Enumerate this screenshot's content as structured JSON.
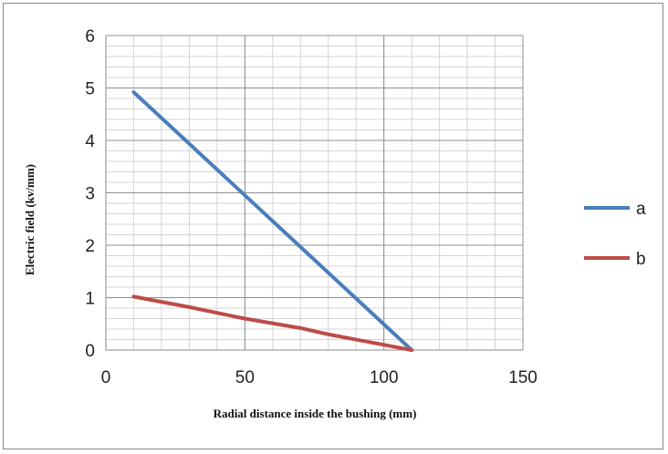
{
  "chart_data": {
    "type": "line",
    "title": "",
    "xlabel": "Radial distance inside the bushing (mm)",
    "ylabel": "Electric field (kv/mm)",
    "xlim": [
      0,
      150
    ],
    "ylim": [
      0,
      6
    ],
    "x_ticks": [
      "0",
      "50",
      "100",
      "150"
    ],
    "y_ticks": [
      "0",
      "1",
      "2",
      "3",
      "4",
      "5",
      "6"
    ],
    "grid": true,
    "legend_position": "right",
    "series": [
      {
        "name": "a",
        "color": "#4a7ebb",
        "x": [
          10,
          110
        ],
        "y": [
          4.92,
          0
        ]
      },
      {
        "name": "b",
        "color": "#be4b48",
        "x": [
          10,
          30,
          50,
          70,
          80,
          110
        ],
        "y": [
          1.02,
          0.82,
          0.6,
          0.42,
          0.3,
          0
        ]
      }
    ]
  }
}
